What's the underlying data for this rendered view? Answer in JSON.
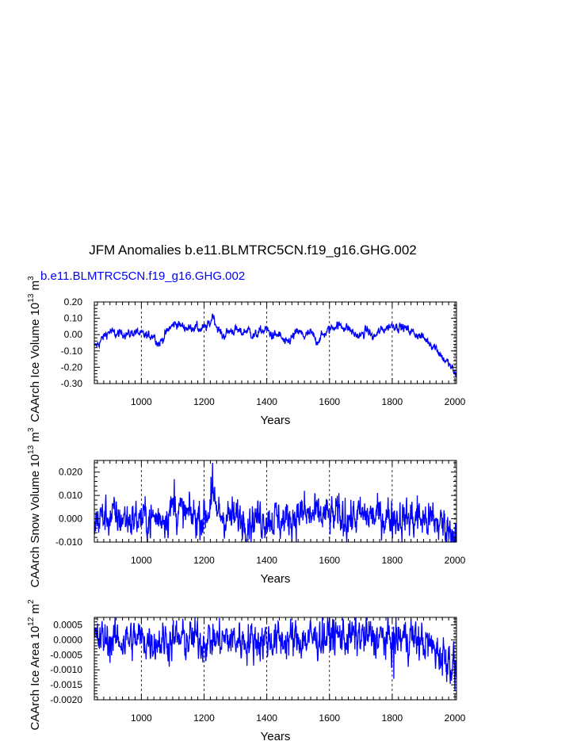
{
  "title": "JFM Anomalies b.e11.BLMTRC5CN.f19_g16.GHG.002",
  "subtitle": "b.e11.BLMTRC5CN.f19_g16.GHG.002",
  "colors": {
    "series": "#0000ff",
    "axis": "#000000",
    "refline": "#000000"
  },
  "chart_data": [
    {
      "type": "line",
      "xlabel": "Years",
      "ylabel": "CAArch Ice Volume 10^13 m^3",
      "ylabel_main": "CAArch Ice Volume 10",
      "ylabel_exp1": "13",
      "ylabel_unit": " m",
      "ylabel_exp2": "3",
      "xlim": [
        850,
        2005
      ],
      "ylim": [
        -0.3,
        0.2
      ],
      "xticks": [
        1000,
        1200,
        1400,
        1600,
        1800,
        2000
      ],
      "yticks": [
        -0.3,
        -0.2,
        -0.1,
        0.0,
        0.1,
        0.2
      ],
      "ytick_labels": [
        "-0.30",
        "-0.20",
        "-0.10",
        "0.00",
        "0.10",
        "0.20"
      ],
      "grid_x": true,
      "series": [
        {
          "points": [
            [
              850,
              -0.08
            ],
            [
              870,
              -0.04
            ],
            [
              885,
              0.0
            ],
            [
              900,
              0.02
            ],
            [
              920,
              0.0
            ],
            [
              940,
              0.01
            ],
            [
              960,
              0.0
            ],
            [
              980,
              0.02
            ],
            [
              1000,
              0.0
            ],
            [
              1020,
              -0.01
            ],
            [
              1040,
              0.0
            ],
            [
              1055,
              -0.06
            ],
            [
              1070,
              -0.02
            ],
            [
              1090,
              0.04
            ],
            [
              1110,
              0.07
            ],
            [
              1130,
              0.05
            ],
            [
              1150,
              0.04
            ],
            [
              1170,
              0.05
            ],
            [
              1190,
              0.03
            ],
            [
              1210,
              0.05
            ],
            [
              1220,
              0.07
            ],
            [
              1228,
              0.13
            ],
            [
              1235,
              0.08
            ],
            [
              1245,
              0.03
            ],
            [
              1260,
              -0.01
            ],
            [
              1280,
              0.02
            ],
            [
              1300,
              0.03
            ],
            [
              1320,
              0.01
            ],
            [
              1340,
              0.03
            ],
            [
              1360,
              -0.01
            ],
            [
              1380,
              0.02
            ],
            [
              1400,
              0.03
            ],
            [
              1420,
              -0.01
            ],
            [
              1440,
              0.0
            ],
            [
              1460,
              -0.06
            ],
            [
              1480,
              -0.02
            ],
            [
              1500,
              0.02
            ],
            [
              1520,
              -0.01
            ],
            [
              1540,
              0.01
            ],
            [
              1560,
              -0.04
            ],
            [
              1580,
              0.0
            ],
            [
              1600,
              0.03
            ],
            [
              1620,
              0.06
            ],
            [
              1640,
              0.05
            ],
            [
              1660,
              0.04
            ],
            [
              1680,
              0.0
            ],
            [
              1700,
              -0.01
            ],
            [
              1720,
              0.03
            ],
            [
              1740,
              -0.02
            ],
            [
              1760,
              0.02
            ],
            [
              1780,
              0.04
            ],
            [
              1800,
              0.06
            ],
            [
              1820,
              0.05
            ],
            [
              1840,
              0.04
            ],
            [
              1860,
              0.02
            ],
            [
              1880,
              0.0
            ],
            [
              1900,
              -0.02
            ],
            [
              1920,
              -0.05
            ],
            [
              1940,
              -0.08
            ],
            [
              1960,
              -0.14
            ],
            [
              1980,
              -0.18
            ],
            [
              1995,
              -0.22
            ],
            [
              2005,
              -0.26
            ]
          ],
          "noise": 0.012
        }
      ]
    },
    {
      "type": "line",
      "xlabel": "Years",
      "ylabel": "CAArch Snow Volume 10^13 m^3",
      "ylabel_main": "CAArch Snow Volume 10",
      "ylabel_exp1": "13",
      "ylabel_unit": " m",
      "ylabel_exp2": "3",
      "xlim": [
        850,
        2005
      ],
      "ylim": [
        -0.01,
        0.025
      ],
      "xticks": [
        1000,
        1200,
        1400,
        1600,
        1800,
        2000
      ],
      "yticks": [
        -0.01,
        0.0,
        0.01,
        0.02
      ],
      "ytick_labels": [
        "-0.010",
        "0.000",
        "0.010",
        "0.020"
      ],
      "grid_x": true,
      "series": [
        {
          "points": [
            [
              850,
              0.0
            ],
            [
              900,
              0.001
            ],
            [
              950,
              0.0
            ],
            [
              1000,
              0.0
            ],
            [
              1050,
              0.0
            ],
            [
              1080,
              0.002
            ],
            [
              1100,
              0.005
            ],
            [
              1120,
              0.003
            ],
            [
              1150,
              0.001
            ],
            [
              1200,
              0.001
            ],
            [
              1215,
              0.003
            ],
            [
              1225,
              0.012
            ],
            [
              1232,
              0.004
            ],
            [
              1250,
              0.002
            ],
            [
              1300,
              0.0
            ],
            [
              1350,
              0.0
            ],
            [
              1400,
              0.001
            ],
            [
              1450,
              -0.001
            ],
            [
              1500,
              0.002
            ],
            [
              1550,
              0.001
            ],
            [
              1600,
              0.001
            ],
            [
              1650,
              0.0
            ],
            [
              1700,
              0.001
            ],
            [
              1750,
              0.001
            ],
            [
              1800,
              0.001
            ],
            [
              1850,
              0.0
            ],
            [
              1900,
              0.0
            ],
            [
              1950,
              -0.002
            ],
            [
              2005,
              -0.005
            ]
          ],
          "noise": 0.0035,
          "spikes": [
            [
              1105,
              0.017
            ],
            [
              1227,
              0.024
            ],
            [
              1222,
              0.018
            ],
            [
              1520,
              0.012
            ],
            [
              1630,
              0.011
            ],
            [
              1880,
              0.01
            ],
            [
              1650,
              0.009
            ],
            [
              1930,
              0.007
            ],
            [
              2003,
              -0.01
            ]
          ]
        }
      ]
    },
    {
      "type": "line",
      "xlabel": "Years",
      "ylabel": "CAArch Ice Area 10^12 m^2",
      "ylabel_main": "CAArch Ice Area 10",
      "ylabel_exp1": "12",
      "ylabel_unit": " m",
      "ylabel_exp2": "2",
      "xlim": [
        850,
        2005
      ],
      "ylim": [
        -0.002,
        0.00075
      ],
      "xticks": [
        1000,
        1200,
        1400,
        1600,
        1800,
        2000
      ],
      "yticks": [
        -0.002,
        -0.0015,
        -0.001,
        -0.0005,
        0.0,
        0.0005
      ],
      "ytick_labels": [
        "-0.0020",
        "-0.0015",
        "-0.0010",
        "-0.0005",
        "0.0000",
        "0.0005"
      ],
      "grid_x": true,
      "series": [
        {
          "points": [
            [
              850,
              0.0
            ],
            [
              900,
              0.0
            ],
            [
              1000,
              0.0
            ],
            [
              1100,
              0.0
            ],
            [
              1200,
              0.0
            ],
            [
              1300,
              0.0
            ],
            [
              1400,
              0.0
            ],
            [
              1500,
              0.0
            ],
            [
              1600,
              0.0001
            ],
            [
              1700,
              0.0001
            ],
            [
              1800,
              0.0
            ],
            [
              1850,
              0.0001
            ],
            [
              1900,
              -0.0001
            ],
            [
              1950,
              -0.0004
            ],
            [
              1980,
              -0.0006
            ],
            [
              2005,
              -0.001
            ]
          ],
          "noise": 0.00028,
          "spikes": [
            [
              1805,
              -0.0013
            ],
            [
              1960,
              -0.0012
            ],
            [
              2000,
              -0.0017
            ],
            [
              1860,
              0.0007
            ],
            [
              1610,
              0.0007
            ]
          ]
        }
      ]
    }
  ]
}
